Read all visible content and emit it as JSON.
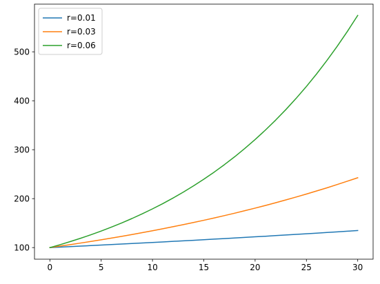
{
  "chart_data": {
    "type": "line",
    "title": "",
    "xlabel": "",
    "ylabel": "",
    "xlim": [
      -1.5,
      31.5
    ],
    "ylim": [
      76.3,
      597.4
    ],
    "x_ticks": [
      0,
      5,
      10,
      15,
      20,
      25,
      30
    ],
    "y_ticks": [
      100,
      200,
      300,
      400,
      500
    ],
    "grid": false,
    "legend_position": "top-left",
    "x": [
      0,
      1,
      2,
      3,
      4,
      5,
      6,
      7,
      8,
      9,
      10,
      11,
      12,
      13,
      14,
      15,
      16,
      17,
      18,
      19,
      20,
      21,
      22,
      23,
      24,
      25,
      26,
      27,
      28,
      29,
      30
    ],
    "series": [
      {
        "name": "r=0.01",
        "color": "#1f77b4",
        "values": [
          100.0,
          101.0,
          102.0,
          103.0,
          104.1,
          105.1,
          106.2,
          107.2,
          108.3,
          109.4,
          110.5,
          111.6,
          112.7,
          113.8,
          114.9,
          116.1,
          117.3,
          118.4,
          119.6,
          120.8,
          122.0,
          123.2,
          124.5,
          125.7,
          127.0,
          128.2,
          129.5,
          130.8,
          132.1,
          133.5,
          134.8
        ]
      },
      {
        "name": "r=0.03",
        "color": "#ff7f0e",
        "values": [
          100.0,
          103.0,
          106.1,
          109.3,
          112.6,
          115.9,
          119.4,
          123.0,
          126.7,
          130.5,
          134.4,
          138.4,
          142.6,
          146.9,
          151.3,
          155.8,
          160.5,
          165.3,
          170.2,
          175.4,
          180.6,
          186.0,
          191.6,
          197.4,
          203.3,
          209.4,
          215.7,
          222.1,
          228.8,
          235.7,
          242.7
        ]
      },
      {
        "name": "r=0.06",
        "color": "#2ca02c",
        "values": [
          100.0,
          106.0,
          112.4,
          119.1,
          126.2,
          133.8,
          141.9,
          150.4,
          159.4,
          169.0,
          179.1,
          189.8,
          201.2,
          213.3,
          226.1,
          239.7,
          254.0,
          269.3,
          285.4,
          302.6,
          320.7,
          340.0,
          360.4,
          382.0,
          404.9,
          429.2,
          455.0,
          482.3,
          511.2,
          541.9,
          574.3
        ]
      }
    ]
  }
}
